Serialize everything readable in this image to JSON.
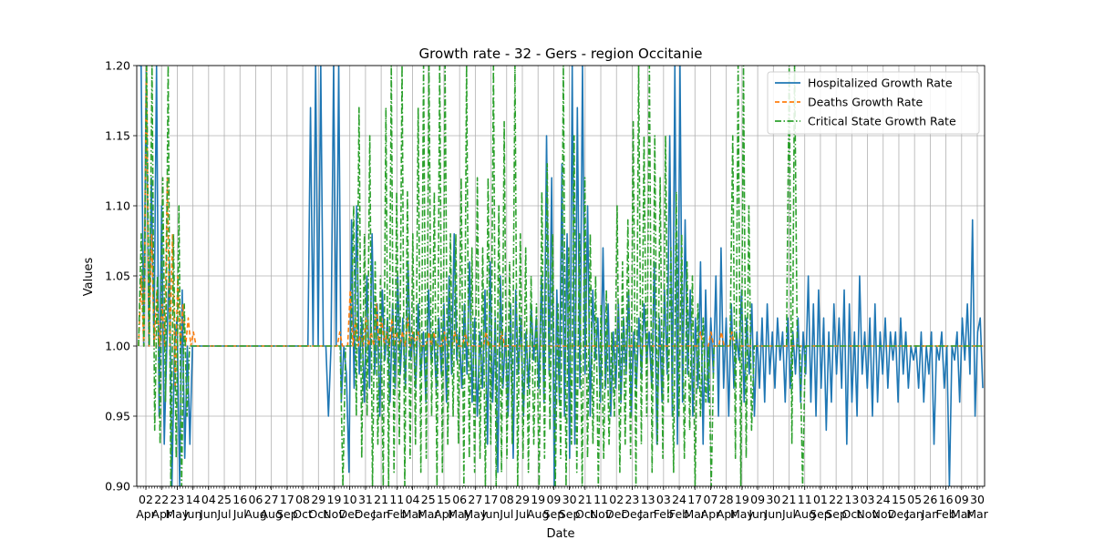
{
  "chart_data": {
    "type": "line",
    "title": "Growth rate - 32 - Gers - region Occitanie",
    "xlabel": "Date",
    "ylabel": "Values",
    "ylim": [
      0.9,
      1.2
    ],
    "yticks": [
      "0.90",
      "0.95",
      "1.00",
      "1.05",
      "1.10",
      "1.15",
      "1.20"
    ],
    "grid": true,
    "legend_position": "top-right",
    "x_tick_labels": [
      {
        "day": "02",
        "month": "Apr"
      },
      {
        "day": "22",
        "month": "Apr"
      },
      {
        "day": "23",
        "month": "May"
      },
      {
        "day": "14",
        "month": "Jun"
      },
      {
        "day": "04",
        "month": "Jun"
      },
      {
        "day": "25",
        "month": "Jul"
      },
      {
        "day": "16",
        "month": "Jul"
      },
      {
        "day": "06",
        "month": "Aug"
      },
      {
        "day": "27",
        "month": "Aug"
      },
      {
        "day": "17",
        "month": "Sep"
      },
      {
        "day": "08",
        "month": "Oct"
      },
      {
        "day": "29",
        "month": "Oct"
      },
      {
        "day": "19",
        "month": "Nov"
      },
      {
        "day": "10",
        "month": "Dec"
      },
      {
        "day": "31",
        "month": "Dec"
      },
      {
        "day": "21",
        "month": "Jan"
      },
      {
        "day": "11",
        "month": "Feb"
      },
      {
        "day": "04",
        "month": "Mar"
      },
      {
        "day": "25",
        "month": "Mar"
      },
      {
        "day": "15",
        "month": "Apr"
      },
      {
        "day": "06",
        "month": "May"
      },
      {
        "day": "27",
        "month": "May"
      },
      {
        "day": "17",
        "month": "Jun"
      },
      {
        "day": "08",
        "month": "Jul"
      },
      {
        "day": "29",
        "month": "Jul"
      },
      {
        "day": "19",
        "month": "Aug"
      },
      {
        "day": "09",
        "month": "Sep"
      },
      {
        "day": "30",
        "month": "Sep"
      },
      {
        "day": "21",
        "month": "Oct"
      },
      {
        "day": "11",
        "month": "Nov"
      },
      {
        "day": "02",
        "month": "Dec"
      },
      {
        "day": "23",
        "month": "Dec"
      },
      {
        "day": "13",
        "month": "Jan"
      },
      {
        "day": "03",
        "month": "Feb"
      },
      {
        "day": "24",
        "month": "Feb"
      },
      {
        "day": "17",
        "month": "Mar"
      },
      {
        "day": "07",
        "month": "Apr"
      },
      {
        "day": "28",
        "month": "Apr"
      },
      {
        "day": "19",
        "month": "May"
      },
      {
        "day": "09",
        "month": "Jun"
      },
      {
        "day": "30",
        "month": "Jun"
      },
      {
        "day": "21",
        "month": "Jul"
      },
      {
        "day": "11",
        "month": "Aug"
      },
      {
        "day": "01",
        "month": "Sep"
      },
      {
        "day": "22",
        "month": "Sep"
      },
      {
        "day": "13",
        "month": "Oct"
      },
      {
        "day": "03",
        "month": "Nov"
      },
      {
        "day": "24",
        "month": "Nov"
      },
      {
        "day": "15",
        "month": "Dec"
      },
      {
        "day": "05",
        "month": "Jan"
      },
      {
        "day": "26",
        "month": "Jan"
      },
      {
        "day": "16",
        "month": "Feb"
      },
      {
        "day": "09",
        "month": "Mar"
      },
      {
        "day": "30",
        "month": "Mar"
      }
    ],
    "series": [
      {
        "name": "Hospitalized Growth Rate",
        "color": "#1f77b4",
        "style": "solid",
        "values": [
          1.2,
          1.2,
          1.0,
          1.2,
          1.0,
          1.12,
          1.0,
          1.2,
          0.95,
          1.1,
          0.93,
          1.0,
          1.06,
          0.9,
          1.0,
          1.02,
          0.9,
          1.04,
          0.92,
          1.0,
          0.93,
          1.0,
          1.0,
          1.0,
          1.0,
          1.0,
          1.0,
          1.0,
          1.0,
          1.0,
          1.0,
          1.0,
          1.0,
          1.0,
          1.0,
          1.0,
          1.0,
          1.0,
          1.0,
          1.0,
          1.0,
          1.0,
          1.0,
          1.0,
          1.0,
          1.0,
          1.0,
          1.0,
          1.0,
          1.0,
          1.0,
          1.0,
          1.0,
          1.0,
          1.0,
          1.0,
          1.0,
          1.0,
          1.0,
          1.0,
          1.0,
          1.0,
          1.0,
          1.0,
          1.0,
          1.0,
          1.0,
          1.17,
          1.0,
          1.2,
          1.0,
          1.2,
          1.0,
          1.0,
          0.95,
          1.0,
          1.2,
          1.0,
          1.2,
          0.96,
          1.0,
          0.98,
          0.91,
          1.09,
          0.97,
          1.1,
          0.98,
          1.02,
          0.96,
          1.05,
          0.97,
          1.08,
          0.98,
          1.03,
          0.95,
          1.04,
          0.99,
          1.02,
          0.96,
          1.03,
          0.97,
          1.05,
          0.98,
          1.02,
          0.97,
          1.06,
          0.99,
          1.01,
          0.97,
          1.03,
          0.98,
          1.01,
          0.96,
          1.04,
          0.99,
          1.01,
          0.97,
          1.02,
          0.98,
          1.03,
          0.96,
          1.05,
          0.98,
          1.08,
          0.99,
          1.01,
          0.97,
          1.03,
          0.98,
          1.06,
          0.96,
          1.02,
          0.95,
          1.01,
          0.97,
          1.04,
          0.93,
          1.06,
          0.96,
          1.02,
          0.91,
          1.05,
          0.97,
          1.01,
          0.95,
          1.03,
          0.92,
          1.04,
          0.98,
          1.02,
          0.95,
          1.01,
          0.97,
          1.03,
          0.99,
          1.02,
          0.97,
          1.05,
          0.96,
          1.15,
          0.98,
          1.12,
          0.9,
          1.04,
          0.96,
          1.13,
          0.95,
          1.08,
          0.92,
          1.2,
          0.93,
          1.17,
          0.97,
          1.2,
          0.98,
          1.1,
          0.95,
          1.04,
          0.99,
          1.02,
          0.96,
          1.07,
          0.97,
          1.03,
          0.95,
          1.01,
          0.97,
          1.03,
          0.96,
          1.02,
          0.98,
          1.04,
          0.95,
          1.01,
          0.97,
          1.02,
          0.98,
          1.03,
          0.99,
          1.01,
          0.97,
          1.06,
          0.93,
          1.02,
          0.96,
          1.04,
          0.98,
          1.15,
          0.95,
          1.2,
          0.93,
          1.2,
          0.96,
          1.09,
          0.98,
          1.04,
          0.95,
          1.02,
          0.97,
          1.06,
          0.93,
          1.04,
          0.96,
          1.02,
          0.98,
          1.05,
          0.95,
          1.07,
          0.97,
          1.02,
          0.95,
          1.03,
          0.97,
          1.01,
          0.99,
          1.04,
          0.96,
          1.02,
          0.98,
          1.03,
          0.95,
          1.01,
          0.97,
          1.02,
          0.96,
          1.03,
          0.98,
          1.01,
          0.97,
          1.02,
          0.99,
          1.01,
          0.96,
          1.02,
          0.97,
          1.01,
          0.98,
          1.02,
          0.96,
          1.01,
          0.98,
          1.05,
          0.96,
          1.03,
          0.95,
          1.04,
          0.97,
          1.02,
          0.94,
          1.01,
          0.96,
          1.03,
          0.98,
          1.02,
          0.97,
          1.04,
          0.93,
          1.03,
          0.96,
          1.01,
          0.95,
          1.05,
          0.98,
          1.01,
          0.97,
          1.02,
          0.95,
          1.03,
          0.96,
          1.01,
          0.98,
          1.02,
          0.97,
          1.01,
          0.99,
          1.01,
          0.96,
          1.02,
          0.98,
          1.01,
          0.97,
          1.0,
          0.99,
          1.0,
          0.97,
          1.01,
          0.96,
          1.0,
          0.98,
          1.01,
          0.93,
          1.0,
          0.99,
          1.01,
          0.97,
          1.0,
          0.9,
          1.0,
          0.99,
          1.01,
          0.96,
          1.02,
          0.99,
          1.03,
          0.98,
          1.09,
          0.95,
          1.01,
          1.02,
          0.97
        ]
      },
      {
        "name": "Deaths Growth Rate",
        "color": "#ff7f0e",
        "style": "dashed",
        "values": [
          1.0,
          1.05,
          1.0,
          1.2,
          1.0,
          1.08,
          1.0,
          1.04,
          1.0,
          1.03,
          1.0,
          1.12,
          1.0,
          1.08,
          0.97,
          1.05,
          1.0,
          1.03,
          1.0,
          1.02,
          1.0,
          1.01,
          1.0,
          1.0,
          1.0,
          1.0,
          1.0,
          1.0,
          1.0,
          1.0,
          1.0,
          1.0,
          1.0,
          1.0,
          1.0,
          1.0,
          1.0,
          1.0,
          1.0,
          1.0,
          1.0,
          1.0,
          1.0,
          1.0,
          1.0,
          1.0,
          1.0,
          1.0,
          1.0,
          1.0,
          1.0,
          1.0,
          1.0,
          1.0,
          1.0,
          1.0,
          1.0,
          1.0,
          1.0,
          1.0,
          1.0,
          1.0,
          1.0,
          1.0,
          1.0,
          1.0,
          1.0,
          1.0,
          1.0,
          1.0,
          1.0,
          1.0,
          1.0,
          1.0,
          1.0,
          1.0,
          1.0,
          1.01,
          1.0,
          1.0,
          1.0,
          1.04,
          1.0,
          1.02,
          1.0,
          1.01,
          1.0,
          1.02,
          1.0,
          1.01,
          1.0,
          1.03,
          1.0,
          1.02,
          1.0,
          1.01,
          1.0,
          1.02,
          1.0,
          1.01,
          1.0,
          1.01,
          1.0,
          1.02,
          1.0,
          1.01,
          1.0,
          1.01,
          1.0,
          1.0,
          1.0,
          1.01,
          1.0,
          1.01,
          1.0,
          1.0,
          1.0,
          1.01,
          1.0,
          1.0,
          1.0,
          1.01,
          1.0,
          1.0,
          1.0,
          1.01,
          1.0,
          1.0,
          1.0,
          1.0,
          1.0,
          1.0,
          1.0,
          1.01,
          1.0,
          1.0,
          1.0,
          1.0,
          1.0,
          1.01,
          1.0,
          1.0,
          1.0,
          1.0,
          1.0,
          1.0,
          1.0,
          1.0,
          1.0,
          1.0,
          1.0,
          1.0,
          1.0,
          1.0,
          1.0,
          1.0,
          1.0,
          1.0,
          1.0,
          1.0,
          1.0,
          1.0,
          1.0,
          1.0,
          1.0,
          1.0,
          1.0,
          1.0,
          1.0,
          1.0,
          1.0,
          1.0,
          1.0,
          1.0,
          1.0,
          1.0,
          1.0,
          1.0,
          1.0,
          1.0,
          1.0,
          1.0,
          1.0,
          1.0,
          1.0,
          1.0,
          1.0,
          1.0,
          1.0,
          1.0,
          1.0,
          1.0,
          1.0,
          1.0,
          1.0,
          1.0,
          1.0,
          1.0,
          1.0,
          1.0,
          1.0,
          1.0,
          1.0,
          1.0,
          1.0,
          1.0,
          1.0,
          1.0,
          1.0,
          1.0,
          1.0,
          1.0,
          1.0,
          1.0,
          1.0,
          1.01,
          1.0,
          1.0,
          1.0,
          1.01,
          1.0,
          1.0,
          1.0,
          1.01,
          1.0,
          1.0,
          1.0,
          1.01,
          1.0,
          1.0,
          1.0,
          1.0,
          1.0,
          1.0,
          1.0,
          1.0,
          1.0,
          1.0,
          1.0,
          1.0,
          1.0,
          1.0,
          1.0,
          1.0,
          1.0,
          1.0,
          1.0,
          1.0,
          1.0,
          1.0,
          1.0,
          1.0,
          1.0,
          1.0,
          1.0,
          1.0,
          1.0,
          1.0,
          1.0,
          1.0,
          1.0,
          1.0,
          1.0,
          1.0,
          1.0,
          1.0,
          1.0,
          1.0,
          1.0,
          1.0,
          1.0,
          1.0,
          1.0,
          1.0,
          1.0,
          1.0,
          1.0,
          1.0,
          1.0,
          1.0,
          1.0,
          1.0,
          1.0,
          1.0,
          1.0,
          1.0,
          1.0,
          1.0,
          1.0,
          1.0,
          1.0,
          1.0,
          1.0,
          1.0,
          1.0,
          1.0,
          1.0,
          1.0,
          1.0,
          1.0,
          1.0,
          1.0,
          1.0,
          1.0,
          1.0,
          1.0,
          1.0,
          1.0,
          1.0,
          1.0,
          1.0,
          1.0,
          1.0,
          1.0,
          1.0,
          1.0,
          1.0,
          1.0,
          1.0,
          1.0,
          1.0,
          1.0,
          1.0,
          1.0
        ]
      },
      {
        "name": "Critical State Growth Rate",
        "color": "#2ca02c",
        "style": "dashdot",
        "values": [
          1.0,
          1.08,
          1.0,
          1.2,
          1.0,
          1.2,
          0.94,
          1.05,
          0.93,
          1.12,
          0.96,
          1.2,
          0.9,
          1.08,
          0.92,
          1.1,
          0.9,
          1.03,
          0.95,
          1.0,
          1.0,
          1.0,
          1.0,
          1.0,
          1.0,
          1.0,
          1.0,
          1.0,
          1.0,
          1.0,
          1.0,
          1.0,
          1.0,
          1.0,
          1.0,
          1.0,
          1.0,
          1.0,
          1.0,
          1.0,
          1.0,
          1.0,
          1.0,
          1.0,
          1.0,
          1.0,
          1.0,
          1.0,
          1.0,
          1.0,
          1.0,
          1.0,
          1.0,
          1.0,
          1.0,
          1.0,
          1.0,
          1.0,
          1.0,
          1.0,
          1.0,
          1.0,
          1.0,
          1.0,
          1.0,
          1.0,
          1.0,
          1.0,
          1.0,
          1.0,
          1.0,
          1.0,
          1.0,
          1.0,
          1.0,
          1.0,
          0.9,
          1.0,
          1.0,
          1.0,
          1.1,
          0.95,
          1.17,
          0.92,
          1.08,
          0.95,
          1.15,
          0.9,
          1.06,
          0.93,
          1.05,
          0.9,
          1.17,
          0.9,
          1.2,
          0.91,
          1.11,
          0.93,
          1.2,
          0.9,
          1.11,
          0.92,
          1.08,
          0.93,
          1.17,
          0.91,
          1.2,
          0.92,
          1.2,
          0.95,
          1.11,
          0.9,
          1.2,
          0.91,
          1.2,
          0.93,
          1.08,
          0.95,
          1.08,
          0.93,
          1.12,
          0.9,
          1.2,
          0.92,
          1.07,
          0.91,
          1.12,
          0.92,
          1.07,
          0.9,
          1.12,
          0.93,
          1.2,
          0.9,
          1.1,
          0.91,
          1.16,
          0.92,
          1.06,
          0.93,
          1.2,
          0.9,
          1.08,
          0.92,
          1.07,
          0.91,
          1.05,
          0.93,
          1.03,
          0.9,
          1.11,
          0.92,
          1.13,
          0.94,
          1.08,
          0.9,
          1.03,
          0.92,
          1.2,
          0.9,
          1.07,
          0.93,
          1.15,
          0.91,
          1.08,
          0.9,
          1.12,
          0.92,
          1.08,
          0.93,
          1.05,
          0.9,
          1.03,
          0.92,
          1.04,
          0.93,
          1.01,
          0.95,
          1.1,
          0.91,
          1.06,
          0.93,
          1.09,
          0.92,
          1.16,
          0.9,
          1.2,
          0.93,
          1.15,
          0.95,
          1.2,
          0.91,
          1.15,
          0.93,
          1.12,
          0.92,
          1.15,
          0.96,
          1.07,
          0.91,
          1.11,
          0.95,
          1.08,
          0.92,
          1.06,
          0.94,
          1.05,
          0.9,
          1.03,
          0.95,
          1.02,
          0.96,
          1.0,
          0.9,
          1.0,
          1.0,
          1.0,
          1.0,
          1.0,
          1.0,
          1.0,
          1.15,
          0.92,
          1.2,
          0.9,
          1.2,
          0.92,
          1.1,
          0.94,
          1.0,
          1.0,
          1.0,
          1.0,
          1.0,
          1.0,
          1.0,
          1.0,
          1.0,
          1.0,
          1.0,
          1.0,
          1.0,
          1.2,
          0.93,
          1.2,
          1.0,
          1.0,
          0.9,
          1.0,
          1.0,
          1.0,
          1.0,
          1.0,
          1.0,
          1.0,
          1.0,
          1.0,
          1.0,
          1.0,
          1.0,
          1.0,
          1.0,
          1.0,
          1.0,
          1.0,
          1.0,
          1.0,
          1.0,
          1.0,
          1.0,
          1.0,
          1.0,
          1.0,
          1.0,
          1.0,
          1.0,
          1.0,
          1.0,
          1.0,
          1.0,
          1.0,
          1.0,
          1.0,
          1.0,
          1.0,
          1.0,
          1.0,
          1.0,
          1.0,
          1.0,
          1.0,
          1.0,
          1.0,
          1.0,
          1.0,
          1.0,
          1.0,
          1.0,
          1.0,
          1.0,
          1.0,
          1.0,
          1.0,
          1.0,
          1.0,
          1.0,
          1.0,
          1.0,
          1.0,
          1.0,
          1.0,
          1.0,
          1.0,
          1.0,
          1.0
        ]
      }
    ]
  }
}
